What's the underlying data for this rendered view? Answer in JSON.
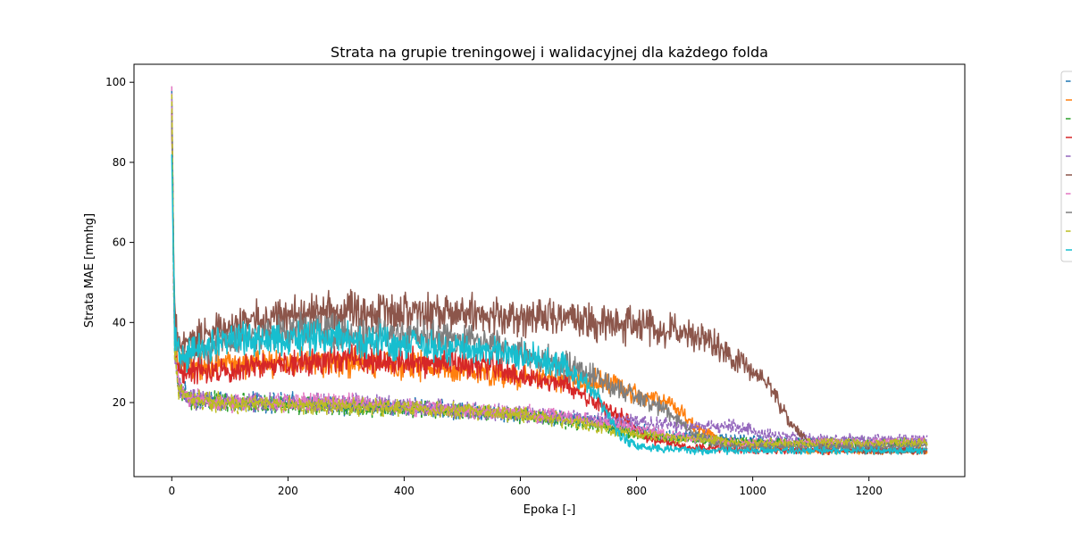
{
  "chart_data": {
    "type": "line",
    "title": "Strata na grupie treningowej i walidacyjnej dla każdego folda",
    "xlabel": "Epoka [-]",
    "ylabel": "Strata MAE [mmhg]",
    "xlim": [
      -65,
      1365
    ],
    "ylim": [
      1.5,
      104.5
    ],
    "x_ticks": [
      0,
      200,
      400,
      600,
      800,
      1000,
      1200
    ],
    "y_ticks": [
      20,
      40,
      60,
      80,
      100
    ],
    "grid": false,
    "legend_position": "upper right, outside plot (clipped)",
    "epochs": 1300,
    "series": [
      {
        "color": "#1f77b4",
        "style": "dashed",
        "curve": [
          [
            0,
            98
          ],
          [
            5,
            35
          ],
          [
            12,
            24
          ],
          [
            30,
            21
          ],
          [
            100,
            20
          ],
          [
            200,
            20
          ],
          [
            300,
            19
          ],
          [
            400,
            19
          ],
          [
            500,
            18
          ],
          [
            600,
            17
          ],
          [
            700,
            16
          ],
          [
            780,
            14
          ],
          [
            850,
            12
          ],
          [
            950,
            11
          ],
          [
            1100,
            10
          ],
          [
            1300,
            10
          ]
        ]
      },
      {
        "color": "#ff7f0e",
        "style": "solid",
        "curve": [
          [
            0,
            92
          ],
          [
            5,
            38
          ],
          [
            12,
            30
          ],
          [
            40,
            29
          ],
          [
            150,
            30
          ],
          [
            300,
            30
          ],
          [
            450,
            29
          ],
          [
            550,
            27
          ],
          [
            650,
            26
          ],
          [
            750,
            25
          ],
          [
            800,
            22
          ],
          [
            860,
            20
          ],
          [
            900,
            14
          ],
          [
            940,
            11
          ],
          [
            1000,
            9
          ],
          [
            1100,
            8
          ],
          [
            1300,
            8
          ]
        ]
      },
      {
        "color": "#2ca02c",
        "style": "dashed",
        "curve": [
          [
            0,
            95
          ],
          [
            5,
            33
          ],
          [
            12,
            23
          ],
          [
            30,
            21
          ],
          [
            100,
            20
          ],
          [
            300,
            19
          ],
          [
            500,
            18
          ],
          [
            600,
            17
          ],
          [
            700,
            15
          ],
          [
            780,
            13
          ],
          [
            850,
            11
          ],
          [
            950,
            10
          ],
          [
            1100,
            10
          ],
          [
            1300,
            10
          ]
        ]
      },
      {
        "color": "#d62728",
        "style": "solid",
        "curve": [
          [
            0,
            90
          ],
          [
            5,
            37
          ],
          [
            12,
            28
          ],
          [
            40,
            28
          ],
          [
            150,
            29
          ],
          [
            300,
            31
          ],
          [
            450,
            30
          ],
          [
            550,
            29
          ],
          [
            620,
            26
          ],
          [
            680,
            24
          ],
          [
            720,
            21
          ],
          [
            780,
            16
          ],
          [
            820,
            11
          ],
          [
            880,
            9
          ],
          [
            1000,
            8
          ],
          [
            1300,
            8
          ]
        ]
      },
      {
        "color": "#9467bd",
        "style": "dashed",
        "curve": [
          [
            0,
            96
          ],
          [
            5,
            34
          ],
          [
            12,
            23
          ],
          [
            30,
            21
          ],
          [
            100,
            20
          ],
          [
            300,
            20
          ],
          [
            500,
            18
          ],
          [
            600,
            17
          ],
          [
            700,
            16
          ],
          [
            800,
            15
          ],
          [
            900,
            14
          ],
          [
            970,
            14
          ],
          [
            1020,
            12
          ],
          [
            1100,
            11
          ],
          [
            1300,
            11
          ]
        ]
      },
      {
        "color": "#8c564b",
        "style": "solid",
        "curve": [
          [
            0,
            93
          ],
          [
            5,
            40
          ],
          [
            15,
            33
          ],
          [
            60,
            38
          ],
          [
            200,
            42
          ],
          [
            350,
            43
          ],
          [
            500,
            42
          ],
          [
            650,
            41
          ],
          [
            750,
            40
          ],
          [
            850,
            38
          ],
          [
            920,
            36
          ],
          [
            980,
            30
          ],
          [
            1030,
            24
          ],
          [
            1070,
            14
          ],
          [
            1100,
            10
          ],
          [
            1200,
            8
          ],
          [
            1300,
            8
          ]
        ]
      },
      {
        "color": "#e377c2",
        "style": "dashed",
        "curve": [
          [
            0,
            99
          ],
          [
            5,
            35
          ],
          [
            12,
            23
          ],
          [
            30,
            21
          ],
          [
            100,
            20
          ],
          [
            300,
            20
          ],
          [
            500,
            18
          ],
          [
            650,
            17
          ],
          [
            750,
            15
          ],
          [
            850,
            12
          ],
          [
            950,
            10
          ],
          [
            1100,
            10
          ],
          [
            1300,
            10
          ]
        ]
      },
      {
        "color": "#7f7f7f",
        "style": "solid",
        "curve": [
          [
            0,
            91
          ],
          [
            5,
            38
          ],
          [
            15,
            31
          ],
          [
            80,
            35
          ],
          [
            200,
            38
          ],
          [
            350,
            37
          ],
          [
            500,
            36
          ],
          [
            600,
            33
          ],
          [
            700,
            28
          ],
          [
            780,
            23
          ],
          [
            850,
            18
          ],
          [
            900,
            12
          ],
          [
            950,
            9
          ],
          [
            1050,
            9
          ],
          [
            1300,
            9
          ]
        ]
      },
      {
        "color": "#bcbd22",
        "style": "dashed",
        "curve": [
          [
            0,
            97
          ],
          [
            5,
            35
          ],
          [
            12,
            23
          ],
          [
            30,
            21
          ],
          [
            100,
            20
          ],
          [
            300,
            19
          ],
          [
            500,
            18
          ],
          [
            600,
            17
          ],
          [
            700,
            15
          ],
          [
            800,
            12
          ],
          [
            900,
            11
          ],
          [
            1000,
            10
          ],
          [
            1300,
            10
          ]
        ]
      },
      {
        "color": "#17becf",
        "style": "solid",
        "curve": [
          [
            0,
            82
          ],
          [
            5,
            37
          ],
          [
            15,
            31
          ],
          [
            80,
            35
          ],
          [
            150,
            36
          ],
          [
            300,
            36
          ],
          [
            450,
            34
          ],
          [
            600,
            32
          ],
          [
            680,
            29
          ],
          [
            730,
            22
          ],
          [
            770,
            12
          ],
          [
            800,
            9
          ],
          [
            900,
            8
          ],
          [
            1300,
            8
          ]
        ]
      }
    ]
  }
}
